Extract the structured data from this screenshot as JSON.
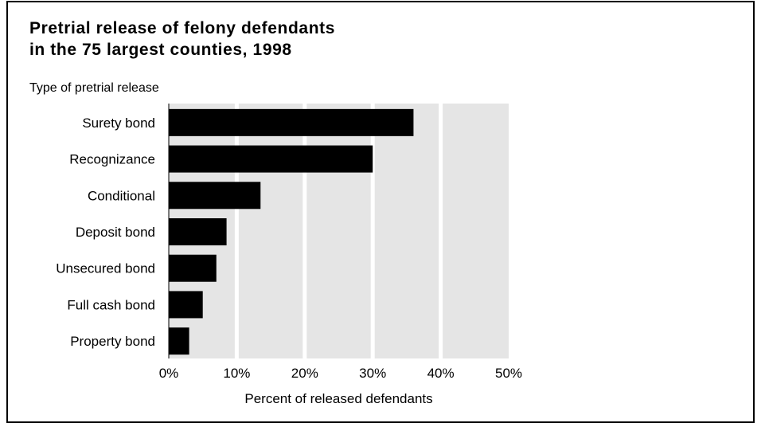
{
  "chart_data": {
    "type": "bar",
    "orientation": "horizontal",
    "title": [
      "Pretrial release of felony defendants",
      "in the 75 largest counties, 1998"
    ],
    "ylabel": "Type of pretrial release",
    "xlabel": "Percent of released defendants",
    "categories": [
      "Surety bond",
      "Recognizance",
      "Conditional",
      "Deposit bond",
      "Unsecured bond",
      "Full cash bond",
      "Property bond"
    ],
    "values": [
      36,
      30,
      13.5,
      8.5,
      7,
      5,
      3
    ],
    "xlim": [
      0,
      50
    ],
    "xticks": [
      "0%",
      "10%",
      "20%",
      "30%",
      "40%",
      "50%"
    ],
    "grid": "vertical",
    "colors": {
      "bar": "#000000",
      "plot_bg": "#e5e5e5",
      "grid": "#ffffff"
    }
  }
}
